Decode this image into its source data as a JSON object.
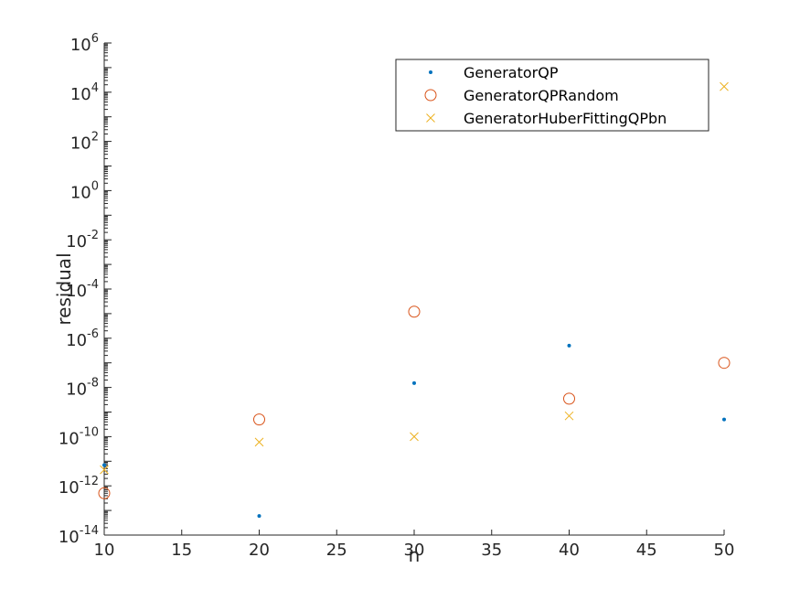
{
  "chart_data": {
    "type": "scatter",
    "xlabel": "n",
    "ylabel": "residual",
    "xlim": [
      10,
      50
    ],
    "ylim": [
      1e-14,
      1000000.0
    ],
    "yscale": "log",
    "grid": false,
    "legend_position": "top-right",
    "x_ticks": [
      10,
      15,
      20,
      25,
      30,
      35,
      40,
      45,
      50
    ],
    "x_tick_labels": [
      "10",
      "15",
      "20",
      "25",
      "30",
      "35",
      "40",
      "45",
      "50"
    ],
    "y_tick_exponents": [
      "-14",
      "-12",
      "-10",
      "-8",
      "-6",
      "-4",
      "-2",
      "0",
      "2",
      "4",
      "6"
    ],
    "y_tick_base": "10",
    "series": [
      {
        "name": "GeneratorQP",
        "marker": "dot",
        "color": "#0072BD",
        "x": [
          10,
          20,
          30,
          40,
          50
        ],
        "y": [
          7e-12,
          6e-14,
          1.5e-08,
          5e-07,
          5e-10
        ]
      },
      {
        "name": "GeneratorQPRandom",
        "marker": "circle",
        "color": "#D95319",
        "x": [
          10,
          20,
          30,
          40,
          50
        ],
        "y": [
          5e-13,
          5e-10,
          1.2e-05,
          3.5e-09,
          1e-07
        ]
      },
      {
        "name": "GeneratorHuberFittingQPbn",
        "marker": "cross",
        "color": "#EDB120",
        "x": [
          10,
          20,
          30,
          40,
          50
        ],
        "y": [
          4.5e-12,
          6e-11,
          1e-10,
          7e-10,
          17000.0
        ]
      }
    ]
  }
}
